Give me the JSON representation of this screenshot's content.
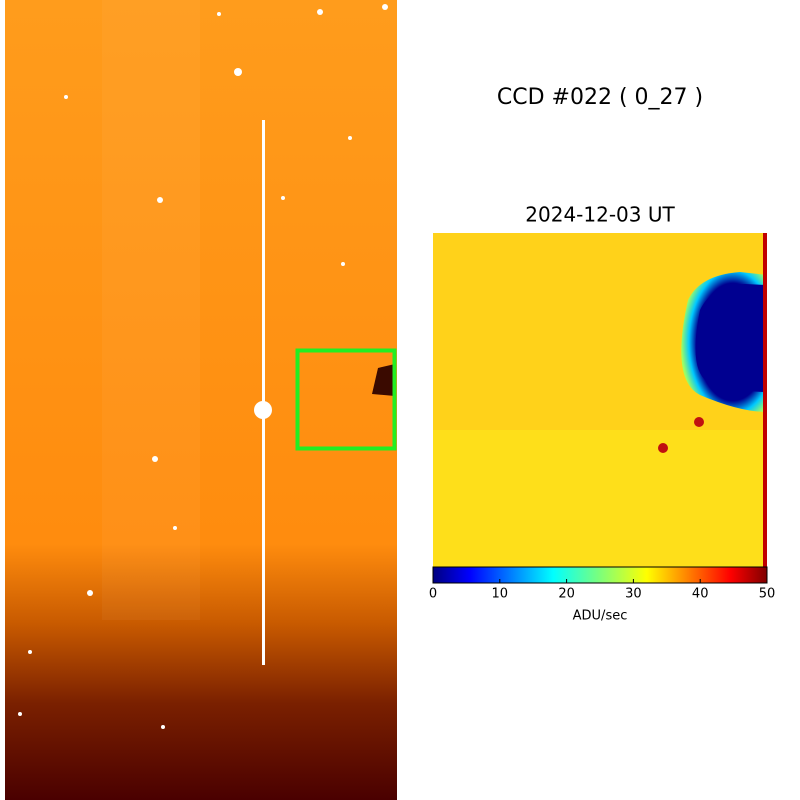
{
  "title": "CCD #022 ( 0_27 )",
  "inset": {
    "title": "2024-12-03 UT",
    "colorbar": {
      "label": "ADU/sec",
      "lim": [
        0,
        50
      ],
      "ticks": [
        0,
        10,
        20,
        30,
        40,
        50
      ]
    }
  }
}
